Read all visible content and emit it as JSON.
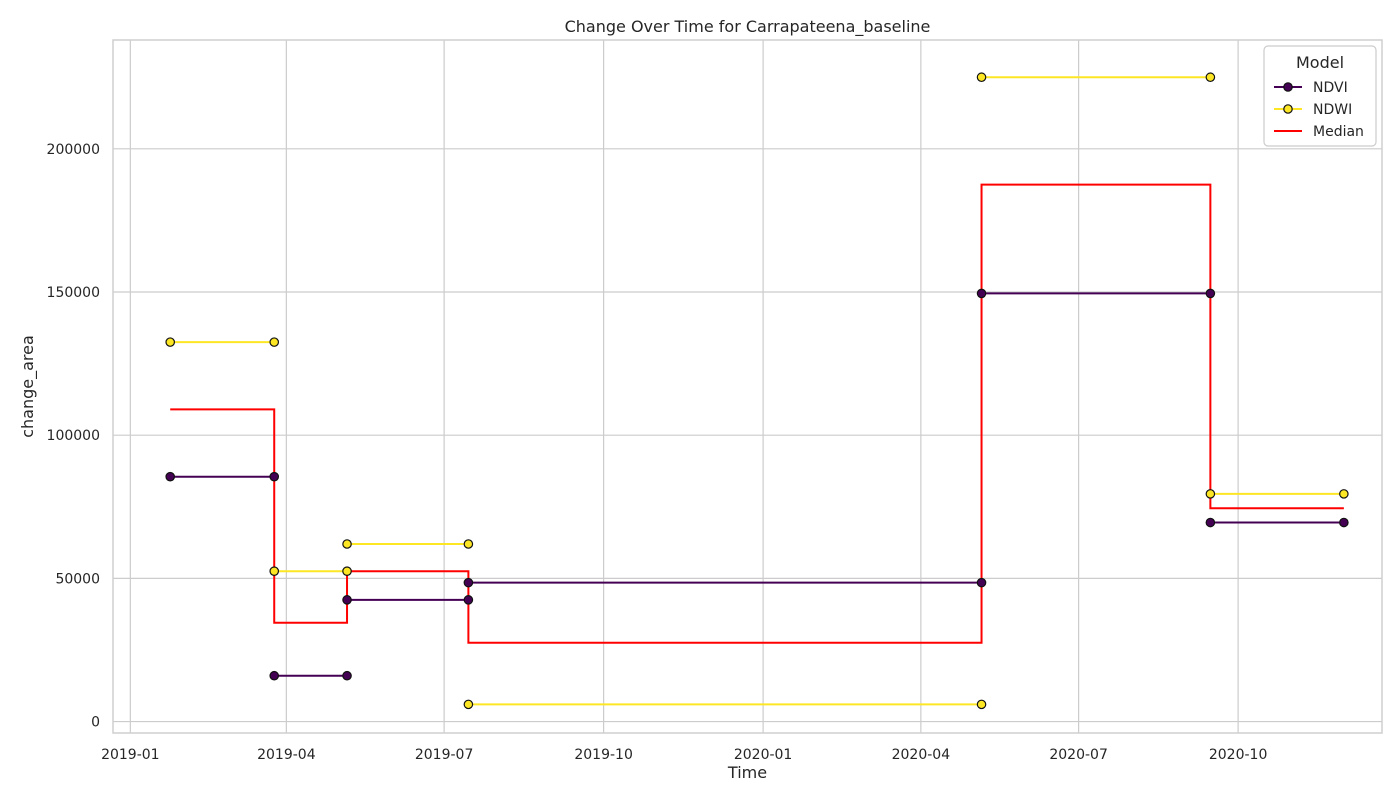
{
  "chart_data": {
    "type": "line",
    "title": "Change Over Time for Carrapateena_baseline",
    "xlabel": "Time",
    "ylabel": "change_area",
    "x_axis_type": "date",
    "xlim": [
      "2018-12-22",
      "2020-12-23"
    ],
    "ylim": [
      -4000,
      238000
    ],
    "x_ticks": [
      {
        "date": "2019-01-01",
        "label": "2019-01"
      },
      {
        "date": "2019-04-01",
        "label": "2019-04"
      },
      {
        "date": "2019-07-01",
        "label": "2019-07"
      },
      {
        "date": "2019-10-01",
        "label": "2019-10"
      },
      {
        "date": "2020-01-01",
        "label": "2020-01"
      },
      {
        "date": "2020-04-01",
        "label": "2020-04"
      },
      {
        "date": "2020-07-01",
        "label": "2020-07"
      },
      {
        "date": "2020-10-01",
        "label": "2020-10"
      }
    ],
    "y_ticks": [
      0,
      50000,
      100000,
      150000,
      200000
    ],
    "grid": true,
    "legend": {
      "title": "Model",
      "placement": "top-right"
    },
    "series": [
      {
        "name": "NDVI",
        "color": "#440154",
        "marker_fill": "#440154",
        "segments": [
          {
            "start": "2019-01-24",
            "end": "2019-03-25",
            "value": 85500
          },
          {
            "start": "2019-03-25",
            "end": "2019-05-06",
            "value": 16000
          },
          {
            "start": "2019-05-06",
            "end": "2019-07-15",
            "value": 42500
          },
          {
            "start": "2019-07-15",
            "end": "2020-05-06",
            "value": 48500
          },
          {
            "start": "2020-05-06",
            "end": "2020-09-15",
            "value": 149500
          },
          {
            "start": "2020-09-15",
            "end": "2020-12-01",
            "value": 69500
          }
        ]
      },
      {
        "name": "NDWI",
        "color": "#fde725",
        "marker_fill": "#fde725",
        "segments": [
          {
            "start": "2019-01-24",
            "end": "2019-03-25",
            "value": 132500
          },
          {
            "start": "2019-03-25",
            "end": "2019-05-06",
            "value": 52500
          },
          {
            "start": "2019-05-06",
            "end": "2019-07-15",
            "value": 62000
          },
          {
            "start": "2019-07-15",
            "end": "2020-05-06",
            "value": 6000
          },
          {
            "start": "2020-05-06",
            "end": "2020-09-15",
            "value": 225000
          },
          {
            "start": "2020-09-15",
            "end": "2020-12-01",
            "value": 79500
          }
        ]
      },
      {
        "name": "Median",
        "color": "#ff0000",
        "points": [
          {
            "date": "2019-01-24",
            "value": 109000
          },
          {
            "date": "2019-03-25",
            "value": 109000
          },
          {
            "date": "2019-03-25",
            "value": 34500
          },
          {
            "date": "2019-05-06",
            "value": 34500
          },
          {
            "date": "2019-05-06",
            "value": 52500
          },
          {
            "date": "2019-07-15",
            "value": 52500
          },
          {
            "date": "2019-07-15",
            "value": 27500
          },
          {
            "date": "2020-05-06",
            "value": 27500
          },
          {
            "date": "2020-05-06",
            "value": 187500
          },
          {
            "date": "2020-09-15",
            "value": 187500
          },
          {
            "date": "2020-09-15",
            "value": 74500
          },
          {
            "date": "2020-12-01",
            "value": 74500
          }
        ]
      }
    ]
  }
}
